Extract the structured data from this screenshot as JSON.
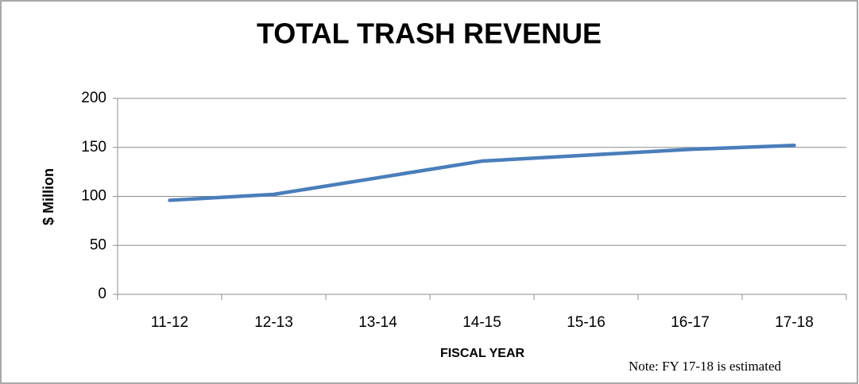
{
  "chart_data": {
    "type": "line",
    "title": "TOTAL TRASH REVENUE",
    "x_label": "FISCAL YEAR",
    "y_label": "$ Million",
    "annotation": "Note: FY 17-18 is estimated",
    "categories": [
      "11-12",
      "12-13",
      "13-14",
      "14-15",
      "15-16",
      "16-17",
      "17-18"
    ],
    "values": [
      96,
      102,
      119,
      136,
      142,
      148,
      152
    ],
    "color": "#4a7ebb",
    "ylim": [
      0,
      200
    ],
    "yticks": [
      0,
      50,
      100,
      150,
      200
    ],
    "grid": true
  }
}
